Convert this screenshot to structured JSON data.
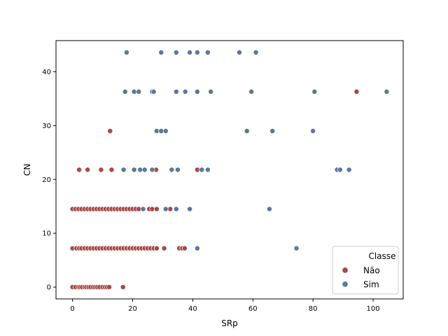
{
  "chart_data": {
    "type": "scatter",
    "title": "",
    "xlabel": "SRp",
    "ylabel": "CN",
    "xlim": [
      -5.5,
      110
    ],
    "ylim": [
      -2.2,
      45.8
    ],
    "xticks": [
      0,
      20,
      40,
      60,
      80,
      100
    ],
    "yticks": [
      0,
      10,
      20,
      30,
      40
    ],
    "grid": false,
    "legend": {
      "title": "Classe",
      "location": "lower right"
    },
    "series": [
      {
        "name": "Não",
        "color": "#a84747",
        "points": [
          [
            0,
            0
          ],
          [
            1,
            0
          ],
          [
            2,
            0
          ],
          [
            2.5,
            0
          ],
          [
            3.2,
            0
          ],
          [
            4,
            0
          ],
          [
            4.6,
            0
          ],
          [
            5.3,
            0
          ],
          [
            6,
            0
          ],
          [
            6.8,
            0
          ],
          [
            7.5,
            0
          ],
          [
            8.2,
            0
          ],
          [
            9,
            0
          ],
          [
            10,
            0
          ],
          [
            10.8,
            0
          ],
          [
            11.5,
            0
          ],
          [
            12.2,
            0
          ],
          [
            16.8,
            0
          ],
          [
            0,
            7.2
          ],
          [
            1.3,
            7.2
          ],
          [
            2.2,
            7.2
          ],
          [
            3,
            7.2
          ],
          [
            4,
            7.2
          ],
          [
            5,
            7.2
          ],
          [
            6,
            7.2
          ],
          [
            7,
            7.2
          ],
          [
            8,
            7.2
          ],
          [
            9,
            7.2
          ],
          [
            10,
            7.2
          ],
          [
            11,
            7.2
          ],
          [
            12,
            7.2
          ],
          [
            13,
            7.2
          ],
          [
            14,
            7.2
          ],
          [
            15,
            7.2
          ],
          [
            16,
            7.2
          ],
          [
            17,
            7.2
          ],
          [
            18,
            7.2
          ],
          [
            19,
            7.2
          ],
          [
            20,
            7.2
          ],
          [
            21,
            7.2
          ],
          [
            22,
            7.2
          ],
          [
            23,
            7.2
          ],
          [
            24,
            7.2
          ],
          [
            25,
            7.2
          ],
          [
            26,
            7.2
          ],
          [
            27,
            7.2
          ],
          [
            28,
            7.2
          ],
          [
            30.5,
            7.2
          ],
          [
            35.5,
            7.2
          ],
          [
            36.5,
            7.2
          ],
          [
            37.3,
            7.2
          ],
          [
            0,
            14.5
          ],
          [
            1,
            14.5
          ],
          [
            2,
            14.5
          ],
          [
            3,
            14.5
          ],
          [
            4,
            14.5
          ],
          [
            5,
            14.5
          ],
          [
            6,
            14.5
          ],
          [
            7,
            14.5
          ],
          [
            8,
            14.5
          ],
          [
            9,
            14.5
          ],
          [
            10,
            14.5
          ],
          [
            11,
            14.5
          ],
          [
            12,
            14.5
          ],
          [
            13,
            14.5
          ],
          [
            14,
            14.5
          ],
          [
            15,
            14.5
          ],
          [
            16,
            14.5
          ],
          [
            17,
            14.5
          ],
          [
            18,
            14.5
          ],
          [
            19,
            14.5
          ],
          [
            20,
            14.5
          ],
          [
            21,
            14.5
          ],
          [
            22,
            14.5
          ],
          [
            25.5,
            14.5
          ],
          [
            26.5,
            14.5
          ],
          [
            28,
            14.5
          ],
          [
            32.5,
            14.5
          ],
          [
            2.2,
            21.8
          ],
          [
            5,
            21.8
          ],
          [
            9.5,
            21.8
          ],
          [
            13,
            21.8
          ],
          [
            27.8,
            21.8
          ],
          [
            41.5,
            21.8
          ],
          [
            12.5,
            29
          ],
          [
            94.5,
            36.3
          ]
        ]
      },
      {
        "name": "Sim",
        "color": "#58799a",
        "points": [
          [
            18,
            43.6
          ],
          [
            29.5,
            43.6
          ],
          [
            34.5,
            43.6
          ],
          [
            39,
            43.6
          ],
          [
            41.5,
            43.6
          ],
          [
            45,
            43.6
          ],
          [
            55.5,
            43.6
          ],
          [
            61,
            43.6
          ],
          [
            17.5,
            36.3
          ],
          [
            20.5,
            36.3
          ],
          [
            22,
            36.3
          ],
          [
            26.5,
            36.3
          ],
          [
            27,
            36.3
          ],
          [
            34.5,
            36.3
          ],
          [
            37.5,
            36.3
          ],
          [
            41.5,
            36.3
          ],
          [
            46,
            36.3
          ],
          [
            59.5,
            36.3
          ],
          [
            80.5,
            36.3
          ],
          [
            104.5,
            36.3
          ],
          [
            28,
            29
          ],
          [
            29.5,
            29
          ],
          [
            31,
            29
          ],
          [
            58,
            29
          ],
          [
            66.5,
            29
          ],
          [
            80,
            29
          ],
          [
            17,
            21.8
          ],
          [
            20.5,
            21.8
          ],
          [
            22.5,
            21.8
          ],
          [
            24,
            21.8
          ],
          [
            26.5,
            21.8
          ],
          [
            33,
            21.8
          ],
          [
            35,
            21.8
          ],
          [
            43,
            21.8
          ],
          [
            45,
            21.8
          ],
          [
            88,
            21.8
          ],
          [
            89,
            21.8
          ],
          [
            92,
            21.8
          ],
          [
            23.5,
            14.5
          ],
          [
            31,
            14.5
          ],
          [
            34.5,
            14.5
          ],
          [
            39,
            14.5
          ],
          [
            65.5,
            14.5
          ],
          [
            41.5,
            7.2
          ],
          [
            74.5,
            7.2
          ]
        ]
      }
    ]
  }
}
